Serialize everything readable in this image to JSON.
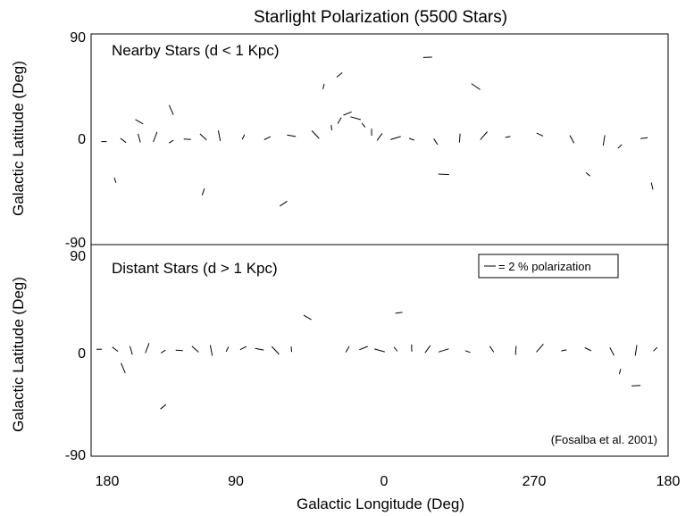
{
  "chart_data": {
    "type": "scatter",
    "title": "Starlight Polarization (5500 Stars)",
    "xlabel": "Galactic Longitude (Deg)",
    "ylabel": "Galactic Latitude (Deg)",
    "x_ticks": [
      "180",
      "90",
      "0",
      "270",
      "180"
    ],
    "legend_text": "= 2 % polarization",
    "credit": "(Fosalba et al. 2001)",
    "grid": false,
    "panels": [
      {
        "label": "Nearby Stars (d < 1 Kpc)",
        "y_ticks": [
          "90",
          "0",
          "-90"
        ],
        "ylim": [
          -90,
          90
        ],
        "xlim": [
          180,
          -180
        ],
        "distribution": "concentrated near the Galactic plane, with a broad spray of vectors rising to high positive latitudes near longitude 0-20 and scattered vectors across all latitudes",
        "series": [
          {
            "values": [
              {
                "x": 172,
                "y": -2
              },
              {
                "x": 160,
                "y": -1
              },
              {
                "x": 150,
                "y": 1
              },
              {
                "x": 140,
                "y": 2
              },
              {
                "x": 130,
                "y": -2
              },
              {
                "x": 120,
                "y": 0
              },
              {
                "x": 110,
                "y": 2
              },
              {
                "x": 100,
                "y": 3
              },
              {
                "x": 85,
                "y": 2
              },
              {
                "x": 70,
                "y": 1
              },
              {
                "x": 55,
                "y": 3
              },
              {
                "x": 40,
                "y": 4
              },
              {
                "x": 30,
                "y": 10
              },
              {
                "x": 25,
                "y": 16
              },
              {
                "x": 20,
                "y": 22
              },
              {
                "x": 15,
                "y": 18
              },
              {
                "x": 10,
                "y": 12
              },
              {
                "x": 5,
                "y": 6
              },
              {
                "x": 0,
                "y": 2
              },
              {
                "x": -10,
                "y": 1
              },
              {
                "x": -20,
                "y": 0
              },
              {
                "x": -35,
                "y": -2
              },
              {
                "x": -50,
                "y": 1
              },
              {
                "x": -65,
                "y": 3
              },
              {
                "x": -80,
                "y": 2
              },
              {
                "x": -100,
                "y": 4
              },
              {
                "x": -120,
                "y": 0
              },
              {
                "x": -140,
                "y": -1
              },
              {
                "x": -150,
                "y": -6
              },
              {
                "x": -165,
                "y": 1
              },
              {
                "x": 150,
                "y": 15
              },
              {
                "x": 130,
                "y": 25
              },
              {
                "x": 35,
                "y": 45
              },
              {
                "x": 25,
                "y": 55
              },
              {
                "x": -30,
                "y": 70
              },
              {
                "x": -60,
                "y": 45
              },
              {
                "x": 165,
                "y": -35
              },
              {
                "x": 110,
                "y": -45
              },
              {
                "x": 60,
                "y": -55
              },
              {
                "x": -40,
                "y": -30
              },
              {
                "x": -130,
                "y": -30
              },
              {
                "x": -170,
                "y": -40
              }
            ]
          }
        ]
      },
      {
        "label": "Distant Stars (d > 1 Kpc)",
        "y_ticks": [
          "90",
          "0",
          "-90"
        ],
        "ylim": [
          -90,
          90
        ],
        "xlim": [
          180,
          -180
        ],
        "distribution": "tightly confined to the Galactic plane, with a gap near longitude 30-50 and very few high-latitude vectors",
        "series": [
          {
            "values": [
              {
                "x": 175,
                "y": 1
              },
              {
                "x": 165,
                "y": 1
              },
              {
                "x": 155,
                "y": 0
              },
              {
                "x": 145,
                "y": 2
              },
              {
                "x": 135,
                "y": -1
              },
              {
                "x": 125,
                "y": 0
              },
              {
                "x": 115,
                "y": 1
              },
              {
                "x": 105,
                "y": 0
              },
              {
                "x": 95,
                "y": 1
              },
              {
                "x": 85,
                "y": 2
              },
              {
                "x": 75,
                "y": 1
              },
              {
                "x": 65,
                "y": 0
              },
              {
                "x": 55,
                "y": 1
              },
              {
                "x": 20,
                "y": 1
              },
              {
                "x": 10,
                "y": 2
              },
              {
                "x": 0,
                "y": 0
              },
              {
                "x": -10,
                "y": 1
              },
              {
                "x": -20,
                "y": 2
              },
              {
                "x": -30,
                "y": 1
              },
              {
                "x": -40,
                "y": 0
              },
              {
                "x": -55,
                "y": -1
              },
              {
                "x": -70,
                "y": 1
              },
              {
                "x": -85,
                "y": 0
              },
              {
                "x": -100,
                "y": 2
              },
              {
                "x": -115,
                "y": 0
              },
              {
                "x": -130,
                "y": 1
              },
              {
                "x": -145,
                "y": -1
              },
              {
                "x": -160,
                "y": 0
              },
              {
                "x": -172,
                "y": 1
              },
              {
                "x": -12,
                "y": 32
              },
              {
                "x": 45,
                "y": 28
              },
              {
                "x": 160,
                "y": -15
              },
              {
                "x": -150,
                "y": -18
              },
              {
                "x": 135,
                "y": -48
              },
              {
                "x": -160,
                "y": -30
              }
            ]
          }
        ]
      }
    ]
  }
}
